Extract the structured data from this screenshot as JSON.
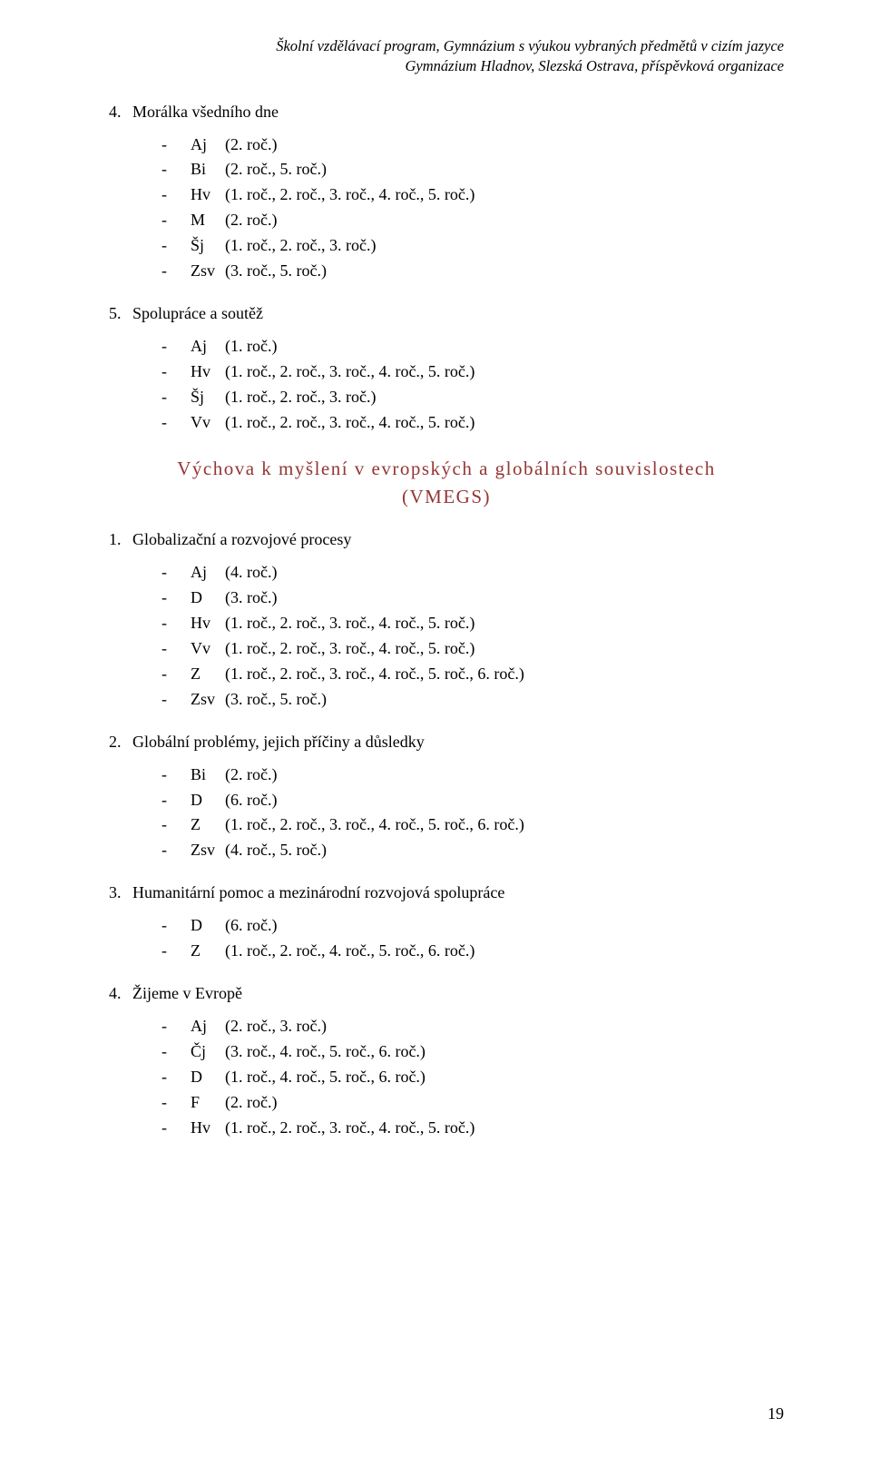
{
  "header": {
    "line1": "Školní vzdělávací program, Gymnázium s výukou vybraných předmětů v cizím jazyce",
    "line2": "Gymnázium Hladnov, Slezská Ostrava, příspěvková organizace"
  },
  "sections": [
    {
      "num": "4.",
      "title": "Morálka všedního dne",
      "items": [
        {
          "abbr": "Aj",
          "text": "(2. roč.)"
        },
        {
          "abbr": "Bi",
          "text": "(2. roč., 5. roč.)"
        },
        {
          "abbr": "Hv",
          "text": "(1. roč., 2. roč., 3. roč., 4. roč., 5. roč.)"
        },
        {
          "abbr": "M",
          "text": "(2. roč.)"
        },
        {
          "abbr": "Šj",
          "text": "(1. roč., 2. roč., 3. roč.)"
        },
        {
          "abbr": "Zsv",
          "text": "(3. roč., 5. roč.)"
        }
      ]
    },
    {
      "num": "5.",
      "title": "Spolupráce a soutěž",
      "items": [
        {
          "abbr": "Aj",
          "text": "(1. roč.)"
        },
        {
          "abbr": "Hv",
          "text": "(1. roč., 2. roč., 3. roč., 4. roč., 5. roč.)"
        },
        {
          "abbr": "Šj",
          "text": "(1. roč., 2. roč., 3. roč.)"
        },
        {
          "abbr": "Vv",
          "text": "(1. roč., 2. roč., 3. roč., 4. roč., 5. roč.)"
        }
      ]
    }
  ],
  "vmegs": {
    "title_line1": "Výchova k myšlení v evropských a globálních souvislostech",
    "title_line2": "(VMEGS)",
    "color": "#943634"
  },
  "vmegs_sections": [
    {
      "num": "1.",
      "title": "Globalizační a rozvojové procesy",
      "items": [
        {
          "abbr": "Aj",
          "text": "(4. roč.)"
        },
        {
          "abbr": "D",
          "text": "(3. roč.)"
        },
        {
          "abbr": "Hv",
          "text": "(1. roč., 2. roč., 3. roč., 4. roč., 5. roč.)"
        },
        {
          "abbr": "Vv",
          "text": "(1. roč., 2. roč., 3. roč., 4. roč., 5. roč.)"
        },
        {
          "abbr": "Z",
          "text": "(1. roč., 2. roč., 3. roč., 4. roč., 5. roč., 6. roč.)"
        },
        {
          "abbr": "Zsv",
          "text": "(3. roč., 5. roč.)"
        }
      ]
    },
    {
      "num": "2.",
      "title": "Globální problémy, jejich příčiny a důsledky",
      "items": [
        {
          "abbr": "Bi",
          "text": "(2. roč.)"
        },
        {
          "abbr": "D",
          "text": "(6. roč.)"
        },
        {
          "abbr": "Z",
          "text": "(1. roč., 2. roč., 3. roč., 4. roč., 5. roč., 6. roč.)"
        },
        {
          "abbr": "Zsv",
          "text": "(4. roč., 5. roč.)"
        }
      ]
    },
    {
      "num": "3.",
      "title": "Humanitární pomoc a mezinárodní rozvojová spolupráce",
      "items": [
        {
          "abbr": "D",
          "text": "(6. roč.)"
        },
        {
          "abbr": "Z",
          "text": "(1. roč., 2. roč., 4. roč., 5. roč., 6. roč.)"
        }
      ]
    },
    {
      "num": "4.",
      "title": "Žijeme v Evropě",
      "items": [
        {
          "abbr": "Aj",
          "text": "(2. roč., 3. roč.)"
        },
        {
          "abbr": "Čj",
          "text": "(3. roč., 4. roč., 5. roč., 6. roč.)"
        },
        {
          "abbr": "D",
          "text": "(1. roč., 4. roč., 5. roč., 6. roč.)"
        },
        {
          "abbr": "F",
          "text": "(2. roč.)"
        },
        {
          "abbr": "Hv",
          "text": "(1. roč., 2. roč., 3. roč., 4. roč., 5. roč.)"
        }
      ]
    }
  ],
  "page_number": "19"
}
